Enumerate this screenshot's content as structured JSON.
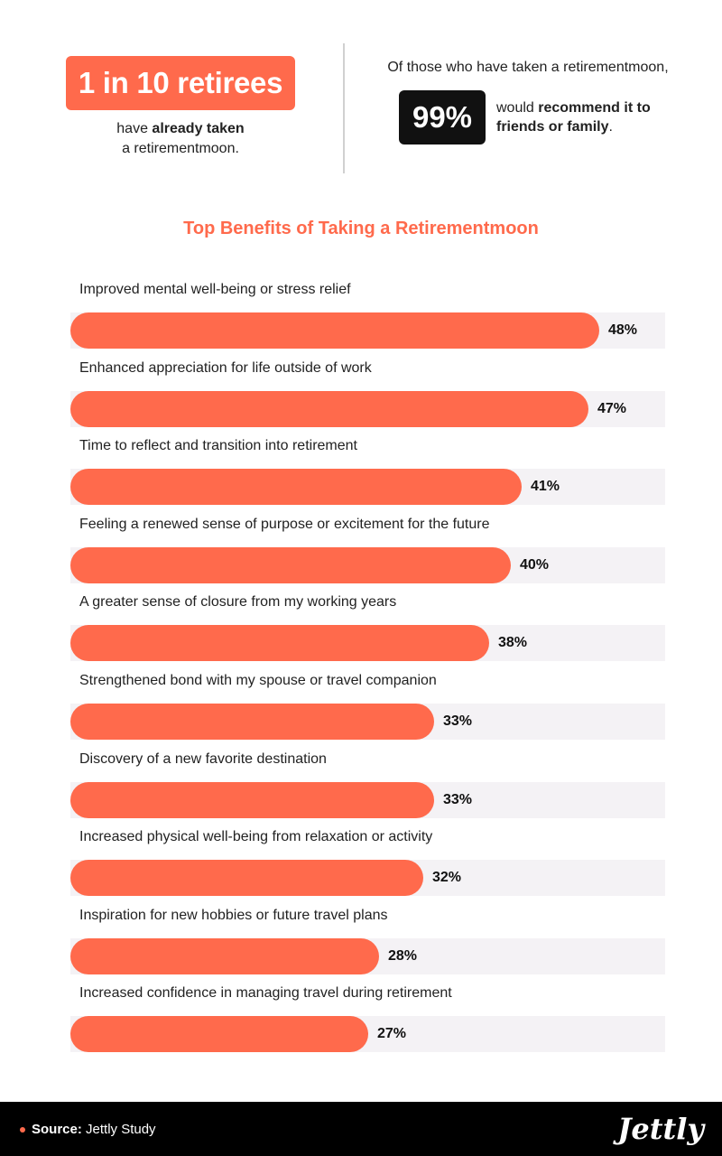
{
  "stat_left": {
    "headline": "1 in 10 retirees",
    "caption_pre": "have ",
    "caption_bold": "already taken",
    "caption_post": " a retirementmoon."
  },
  "stat_right": {
    "intro": "Of those who have taken a retirementmoon,",
    "value": "99%",
    "text_pre": "would ",
    "text_bold": "recommend it to friends or family",
    "text_post": "."
  },
  "colors": {
    "accent": "#ff6a4c",
    "track": "#f4f2f5",
    "dark": "#111111"
  },
  "chart_data": {
    "type": "bar",
    "orientation": "horizontal",
    "title": "Top Benefits of Taking a Retirementmoon",
    "xlim": [
      0,
      54
    ],
    "categories": [
      "Improved mental well-being or stress relief",
      "Enhanced appreciation for life outside of work",
      "Time to reflect and transition into retirement",
      "Feeling a renewed sense of purpose or excitement for the future",
      "A greater sense of closure from my working years",
      "Strengthened bond with my spouse or travel companion",
      "Discovery of a new favorite destination",
      "Increased physical well-being from relaxation or activity",
      "Inspiration for new hobbies or future travel plans",
      "Increased confidence in managing travel during retirement"
    ],
    "values": [
      48,
      47,
      41,
      40,
      38,
      33,
      33,
      32,
      28,
      27
    ],
    "value_labels": [
      "48%",
      "47%",
      "41%",
      "40%",
      "38%",
      "33%",
      "33%",
      "32%",
      "28%",
      "27%"
    ]
  },
  "footer": {
    "source_label": "Source:",
    "source_text": " Jettly Study",
    "logo": "Jettly"
  }
}
